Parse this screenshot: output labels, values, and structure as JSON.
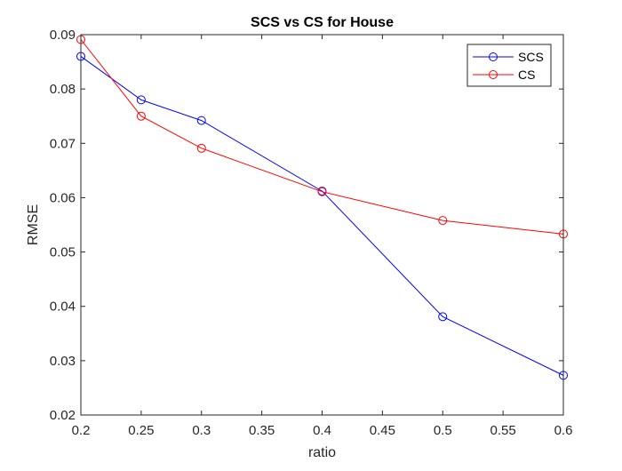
{
  "chart_data": {
    "type": "line",
    "title": "SCS vs CS for House",
    "xlabel": "ratio",
    "ylabel": "RMSE",
    "xlim": [
      0.2,
      0.6
    ],
    "ylim": [
      0.02,
      0.09
    ],
    "xticks": [
      0.2,
      0.25,
      0.3,
      0.35,
      0.4,
      0.45,
      0.5,
      0.55,
      0.6
    ],
    "xtick_labels": [
      "0.2",
      "0.25",
      "0.3",
      "0.35",
      "0.4",
      "0.45",
      "0.5",
      "0.55",
      "0.6"
    ],
    "yticks": [
      0.02,
      0.03,
      0.04,
      0.05,
      0.06,
      0.07,
      0.08,
      0.09
    ],
    "ytick_labels": [
      "0.02",
      "0.03",
      "0.04",
      "0.05",
      "0.06",
      "0.07",
      "0.08",
      "0.09"
    ],
    "grid": false,
    "legend_position": "top-right",
    "x": [
      0.2,
      0.25,
      0.3,
      0.4,
      0.5,
      0.6
    ],
    "series": [
      {
        "name": "SCS",
        "color": "#0000ff",
        "marker": "circle",
        "values": [
          0.086,
          0.078,
          0.0742,
          0.0612,
          0.0381,
          0.0273
        ]
      },
      {
        "name": "CS",
        "color": "#ff0000",
        "marker": "circle",
        "values": [
          0.0891,
          0.075,
          0.0691,
          0.0611,
          0.0558,
          0.0533
        ]
      }
    ]
  }
}
